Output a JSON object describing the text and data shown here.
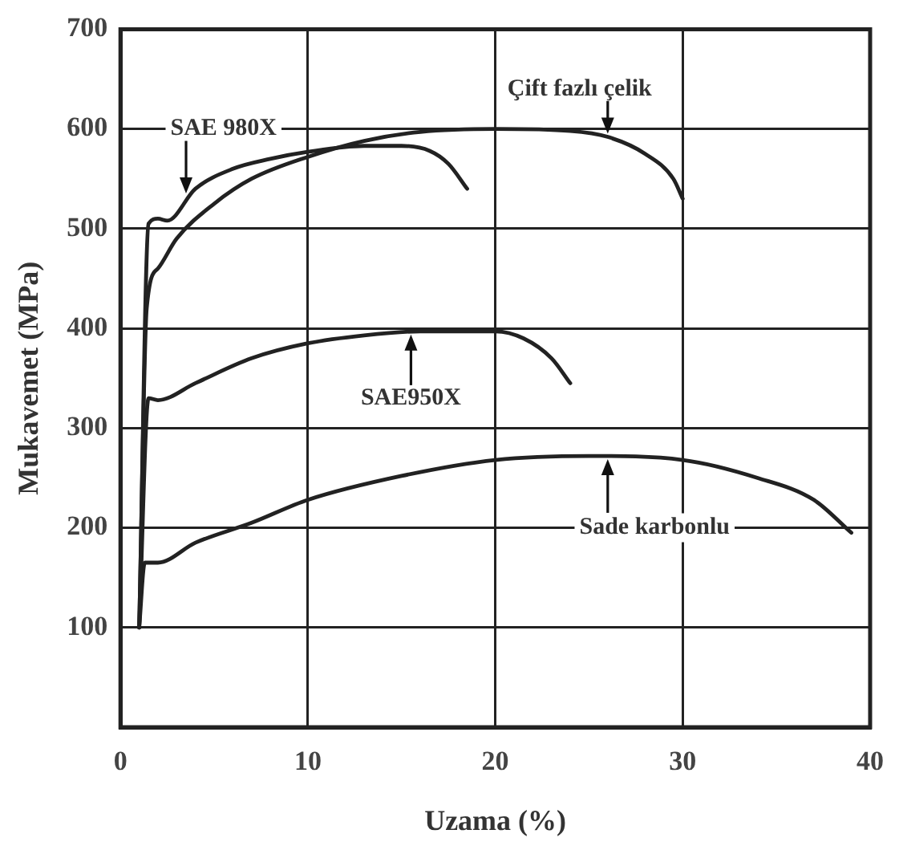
{
  "chart_data": {
    "type": "line",
    "xlabel": "Uzama (%)",
    "ylabel": "Mukavemet (MPa)",
    "xlim": [
      0,
      40
    ],
    "xticks": [
      0,
      10,
      20,
      30,
      40
    ],
    "ylim": [
      0,
      700
    ],
    "yticks": [
      100,
      200,
      300,
      400,
      500,
      600,
      700
    ],
    "grid": true,
    "legend": false,
    "marker": "none",
    "line_style": "solid",
    "series": [
      {
        "color": "#222222",
        "x": [
          1,
          1.5,
          2,
          2.5,
          4,
          6,
          8,
          10,
          13,
          15,
          16.5,
          17.5,
          18.5
        ],
        "values": [
          100,
          505,
          510,
          508,
          540,
          560,
          570,
          577,
          583,
          583,
          578,
          565,
          540
        ]
      },
      {
        "color": "#222222",
        "x": [
          1,
          1.4,
          2,
          3,
          5,
          7,
          10,
          13,
          16,
          20,
          24,
          26,
          28,
          29.5,
          30
        ],
        "values": [
          100,
          420,
          460,
          490,
          525,
          550,
          572,
          588,
          597,
          600,
          598,
          592,
          575,
          550,
          530
        ]
      },
      {
        "color": "#222222",
        "x": [
          1,
          1.5,
          2,
          4,
          7,
          10,
          13,
          16,
          20,
          21.5,
          23,
          24
        ],
        "values": [
          100,
          330,
          328,
          345,
          370,
          385,
          393,
          397,
          397,
          390,
          370,
          345
        ]
      },
      {
        "color": "#222222",
        "x": [
          1,
          1.3,
          2,
          4,
          7,
          10,
          15,
          20,
          25,
          30,
          34,
          37,
          39
        ],
        "values": [
          100,
          165,
          165,
          185,
          205,
          228,
          252,
          268,
          272,
          268,
          250,
          228,
          195
        ]
      }
    ],
    "annotations": [
      {
        "text": "SAE 980X",
        "x": 3.5,
        "y": 532
      },
      {
        "text": "Çift fazlı çelik",
        "x": 26,
        "y": 592
      },
      {
        "text": "SAE950X",
        "x": 15.5,
        "y": 397
      },
      {
        "text": "Sade karbonlu",
        "x": 26,
        "y": 272
      }
    ]
  }
}
